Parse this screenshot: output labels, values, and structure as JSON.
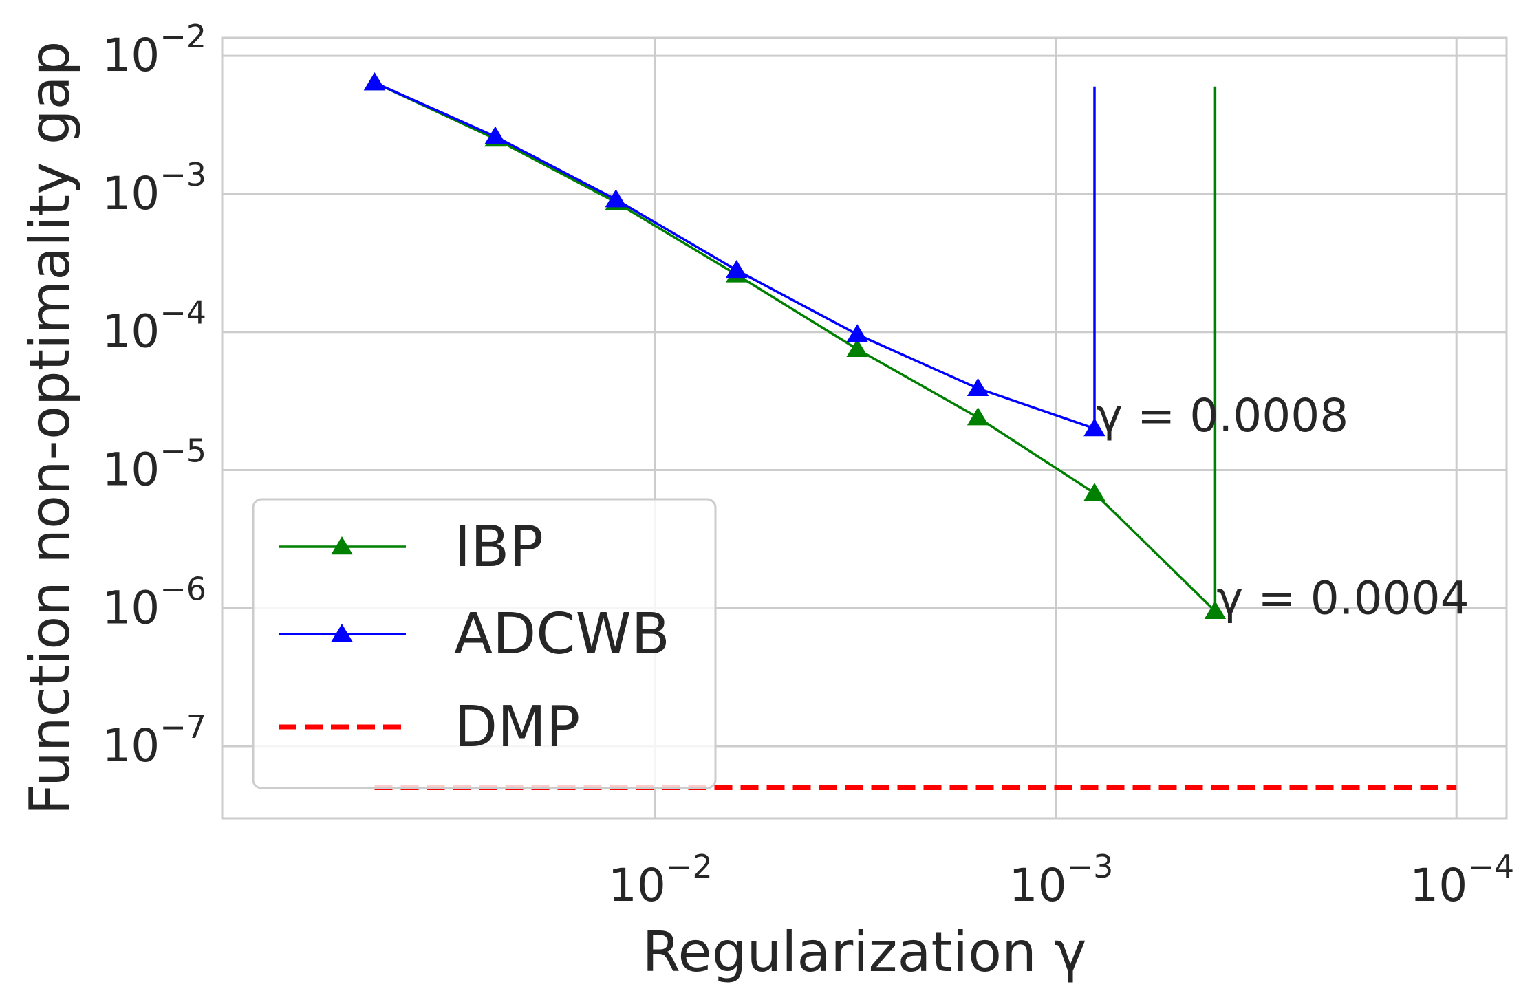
{
  "chart_data": {
    "type": "line",
    "xlabel": "Regularization γ",
    "ylabel": "Function non-optimality gap",
    "xscale": "log",
    "yscale": "log",
    "x_reversed": true,
    "xlim": [
      0.12,
      7.5e-05
    ],
    "ylim": [
      3e-08,
      0.0135
    ],
    "grid": true,
    "legend_position": "lower-left",
    "x_ticks": [
      {
        "value": 0.01,
        "base": "10",
        "exp": "−2"
      },
      {
        "value": 0.001,
        "base": "10",
        "exp": "−3"
      },
      {
        "value": 0.0001,
        "base": "10",
        "exp": "−4"
      }
    ],
    "y_ticks": [
      {
        "value": 0.01,
        "base": "10",
        "exp": "−2"
      },
      {
        "value": 0.001,
        "base": "10",
        "exp": "−3"
      },
      {
        "value": 0.0001,
        "base": "10",
        "exp": "−4"
      },
      {
        "value": 1e-05,
        "base": "10",
        "exp": "−5"
      },
      {
        "value": 1e-06,
        "base": "10",
        "exp": "−6"
      },
      {
        "value": 1e-07,
        "base": "10",
        "exp": "−7"
      }
    ],
    "series": [
      {
        "name": "IBP",
        "color": "#008000",
        "marker": "triangle",
        "x": [
          0.05,
          0.025,
          0.0125,
          0.00625,
          0.003125,
          0.0015625,
          0.0008,
          0.0004,
          0.0004
        ],
        "y": [
          0.0064,
          0.0025,
          0.00087,
          0.00026,
          7.5e-05,
          2.4e-05,
          6.8e-06,
          9.5e-07,
          0.006
        ],
        "markers": [
          true,
          true,
          true,
          true,
          true,
          true,
          true,
          true,
          false
        ],
        "line_style": "solid"
      },
      {
        "name": "ADCWB",
        "color": "#0000ff",
        "marker": "triangle",
        "x": [
          0.05,
          0.025,
          0.0125,
          0.00625,
          0.003125,
          0.0015625,
          0.0008,
          0.0008
        ],
        "y": [
          0.0064,
          0.0026,
          0.00091,
          0.00028,
          9.6e-05,
          3.9e-05,
          2e-05,
          0.006
        ],
        "markers": [
          true,
          true,
          true,
          true,
          true,
          true,
          true,
          false
        ],
        "line_style": "solid"
      },
      {
        "name": "DMP",
        "color": "#ff0000",
        "marker": "none",
        "x": [
          0.05,
          0.0001
        ],
        "y": [
          5e-08,
          5e-08
        ],
        "line_style": "dashed"
      }
    ],
    "annotations": [
      {
        "text": "γ = 0.0008",
        "x": 0.0008,
        "y": 2e-05
      },
      {
        "text": "γ = 0.0004",
        "x": 0.0004,
        "y": 9.5e-07
      }
    ]
  }
}
